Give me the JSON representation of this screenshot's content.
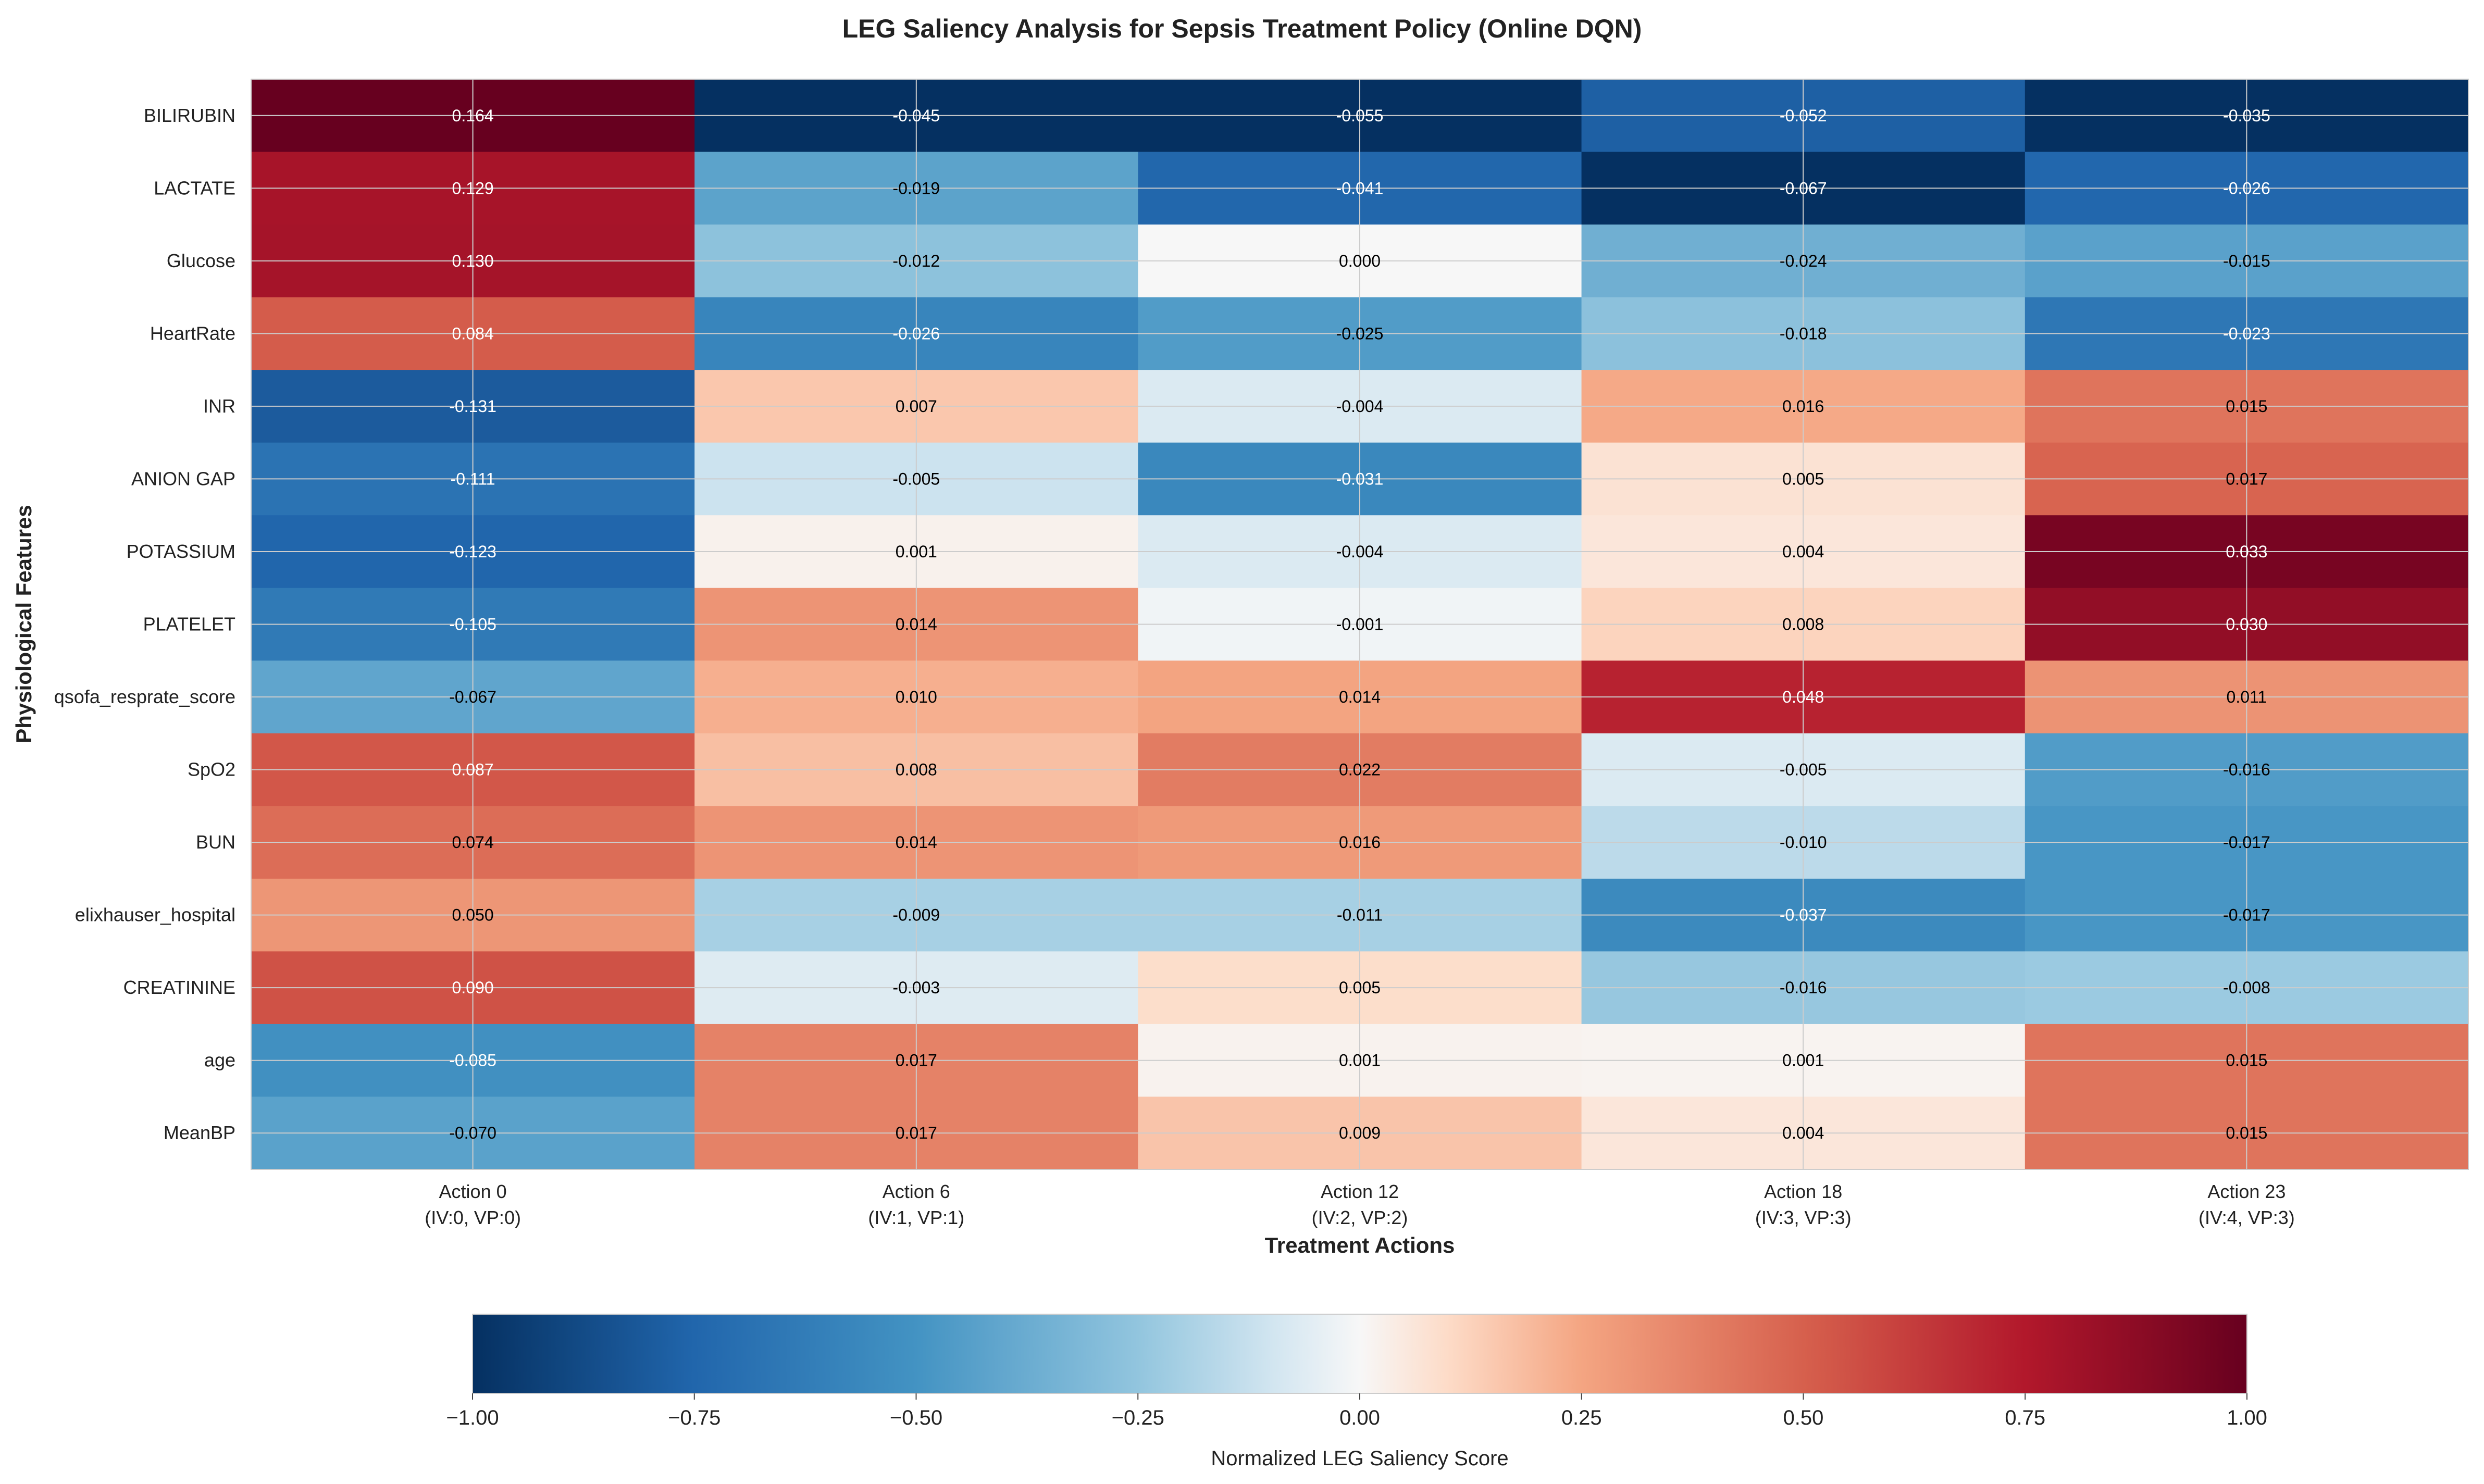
{
  "chart_data": {
    "type": "heatmap",
    "title": "LEG Saliency Analysis for Sepsis Treatment Policy (Online DQN)",
    "xlabel": "Treatment Actions",
    "ylabel": "Physiological Features",
    "columns": [
      {
        "line1": "Action 0",
        "line2": "(IV:0, VP:0)",
        "scale_ref": 0.164
      },
      {
        "line1": "Action 6",
        "line2": "(IV:1, VP:1)",
        "scale_ref": 0.045
      },
      {
        "line1": "Action 12",
        "line2": "(IV:2, VP:2)",
        "scale_ref": 0.055
      },
      {
        "line1": "Action 18",
        "line2": "(IV:3, VP:3)",
        "scale_ref": 0.067
      },
      {
        "line1": "Action 23",
        "line2": "(IV:4, VP:3)",
        "scale_ref": 0.035
      }
    ],
    "rows": [
      "BILIRUBIN",
      "LACTATE",
      "Glucose",
      "HeartRate",
      "INR",
      "ANION GAP",
      "POTASSIUM",
      "PLATELET",
      "qsofa_resprate_score",
      "SpO2",
      "BUN",
      "elixhauser_hospital",
      "CREATININE",
      "age",
      "MeanBP"
    ],
    "values": [
      [
        0.164,
        -0.045,
        -0.055,
        -0.052,
        -0.035
      ],
      [
        0.129,
        -0.019,
        -0.041,
        -0.067,
        -0.026
      ],
      [
        0.13,
        -0.012,
        0.0,
        -0.024,
        -0.015
      ],
      [
        0.084,
        -0.026,
        -0.025,
        -0.018,
        -0.023
      ],
      [
        -0.131,
        0.007,
        -0.004,
        0.016,
        0.015
      ],
      [
        -0.111,
        -0.005,
        -0.031,
        0.005,
        0.017
      ],
      [
        -0.123,
        0.001,
        -0.004,
        0.004,
        0.033
      ],
      [
        -0.105,
        0.014,
        -0.001,
        0.008,
        0.03
      ],
      [
        -0.067,
        0.01,
        0.014,
        0.048,
        0.011
      ],
      [
        0.087,
        0.008,
        0.022,
        -0.005,
        -0.016
      ],
      [
        0.074,
        0.014,
        0.016,
        -0.01,
        -0.017
      ],
      [
        0.05,
        -0.009,
        -0.011,
        -0.037,
        -0.017
      ],
      [
        0.09,
        -0.003,
        0.005,
        -0.016,
        -0.008
      ],
      [
        -0.085,
        0.017,
        0.001,
        0.001,
        0.015
      ],
      [
        -0.07,
        0.017,
        0.009,
        0.004,
        0.015
      ]
    ],
    "colorbar": {
      "label": "Normalized LEG Saliency Score",
      "range": [
        -1.0,
        1.0
      ],
      "ticks": [
        "−1.00",
        "−0.75",
        "−0.50",
        "−0.25",
        "0.00",
        "0.25",
        "0.50",
        "0.75",
        "1.00"
      ],
      "colormap": "RdBu_r"
    },
    "grid": true
  }
}
